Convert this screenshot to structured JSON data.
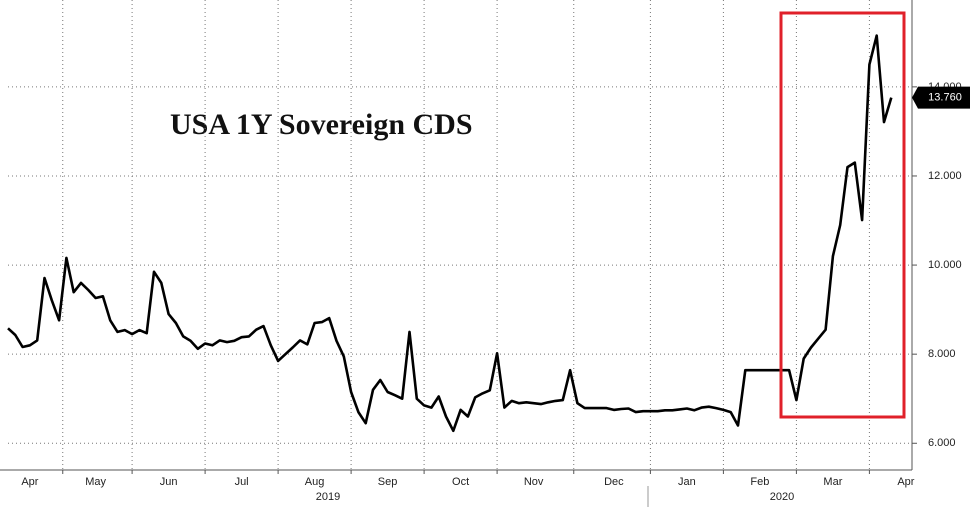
{
  "chart_data": {
    "type": "line",
    "title": "USA 1Y Sovereign CDS",
    "categories": [
      null,
      null,
      null,
      "Apr",
      null,
      null,
      null,
      null,
      null,
      null,
      null,
      null,
      "May",
      null,
      null,
      null,
      null,
      null,
      null,
      null,
      null,
      null,
      "Jun",
      null,
      null,
      null,
      null,
      null,
      null,
      null,
      null,
      null,
      "Jul",
      null,
      null,
      null,
      null,
      null,
      null,
      null,
      null,
      null,
      "Aug",
      null,
      null,
      null,
      null,
      null,
      null,
      null,
      null,
      null,
      "Sep",
      null,
      null,
      null,
      null,
      null,
      null,
      null,
      null,
      null,
      "Oct",
      null,
      null,
      null,
      null,
      null,
      null,
      null,
      null,
      null,
      "Nov",
      null,
      null,
      null,
      null,
      null,
      null,
      null,
      null,
      null,
      null,
      "Dec",
      null,
      null,
      null,
      null,
      null,
      null,
      null,
      null,
      null,
      "Jan",
      null,
      null,
      null,
      null,
      null,
      null,
      null,
      null,
      null,
      "Feb",
      null,
      null,
      null,
      null,
      null,
      null,
      null,
      null,
      null,
      "Mar",
      null,
      null,
      null,
      null,
      null,
      null,
      null,
      null,
      null,
      "Apr"
    ],
    "years": [
      "2019",
      "2020"
    ],
    "values": [
      8.58,
      8.43,
      8.16,
      8.2,
      8.31,
      9.71,
      9.21,
      8.76,
      10.16,
      9.39,
      9.6,
      9.44,
      9.26,
      9.3,
      8.76,
      8.5,
      8.54,
      8.45,
      8.54,
      8.47,
      9.85,
      9.6,
      8.9,
      8.7,
      8.4,
      8.3,
      8.12,
      8.24,
      8.2,
      8.31,
      8.27,
      8.3,
      8.38,
      8.4,
      8.55,
      8.63,
      8.2,
      7.85,
      8.0,
      8.15,
      8.31,
      8.22,
      8.7,
      8.72,
      8.81,
      8.3,
      7.95,
      7.15,
      6.7,
      6.45,
      7.2,
      7.42,
      7.15,
      7.08,
      7.0,
      8.5,
      7.0,
      6.85,
      6.8,
      7.05,
      6.6,
      6.28,
      6.75,
      6.6,
      7.03,
      7.12,
      7.19,
      8.02,
      6.8,
      6.95,
      6.9,
      6.92,
      6.9,
      6.88,
      6.92,
      6.95,
      6.97,
      7.64,
      6.9,
      6.79,
      6.79,
      6.79,
      6.79,
      6.75,
      6.77,
      6.78,
      6.7,
      6.72,
      6.72,
      6.72,
      6.74,
      6.74,
      6.76,
      6.78,
      6.74,
      6.8,
      6.82,
      6.79,
      6.75,
      6.7,
      6.4,
      7.64,
      7.64,
      7.64,
      7.64,
      7.64,
      7.64,
      7.64,
      6.97,
      7.9,
      8.15,
      8.35,
      8.55,
      10.2,
      10.9,
      12.2,
      12.3,
      11.01,
      14.5,
      15.15,
      13.21,
      13.76,
      null,
      null
    ],
    "value_labels": [
      null,
      null,
      null,
      null,
      null,
      null,
      null,
      null,
      null,
      null,
      null,
      null,
      null,
      null,
      null,
      null,
      null,
      null,
      null,
      null,
      null,
      null,
      null,
      null,
      null,
      null,
      null,
      null,
      null,
      null,
      null,
      null,
      null,
      null,
      null,
      null,
      null,
      null,
      null,
      null,
      null,
      null,
      null,
      null,
      null,
      null,
      null,
      null,
      null,
      null,
      null,
      null,
      null,
      null,
      null,
      null,
      null,
      null,
      null,
      null,
      null,
      null,
      null,
      null,
      null,
      null,
      null,
      null,
      null,
      null,
      null,
      null,
      null,
      null,
      null,
      null,
      null,
      null,
      null,
      null,
      null,
      null,
      null,
      null,
      null,
      null,
      null,
      null,
      null,
      null,
      null,
      null,
      null,
      null,
      null,
      null,
      null,
      null,
      null,
      null,
      null,
      null,
      null,
      null,
      null,
      null,
      null,
      null,
      null,
      null,
      null,
      null,
      null,
      null,
      null,
      null,
      null,
      null,
      null,
      null,
      null,
      "13.760",
      null,
      null
    ],
    "color": "#000000",
    "ylim": [
      5.4,
      15.95
    ],
    "yticks": [
      {
        "value": 6,
        "label": "6.000"
      },
      {
        "value": 8,
        "label": "8.000"
      },
      {
        "value": 10,
        "label": "10.000"
      },
      {
        "value": 12,
        "label": "12.000"
      },
      {
        "value": 14,
        "label": "14.000"
      }
    ],
    "grid": true
  }
}
